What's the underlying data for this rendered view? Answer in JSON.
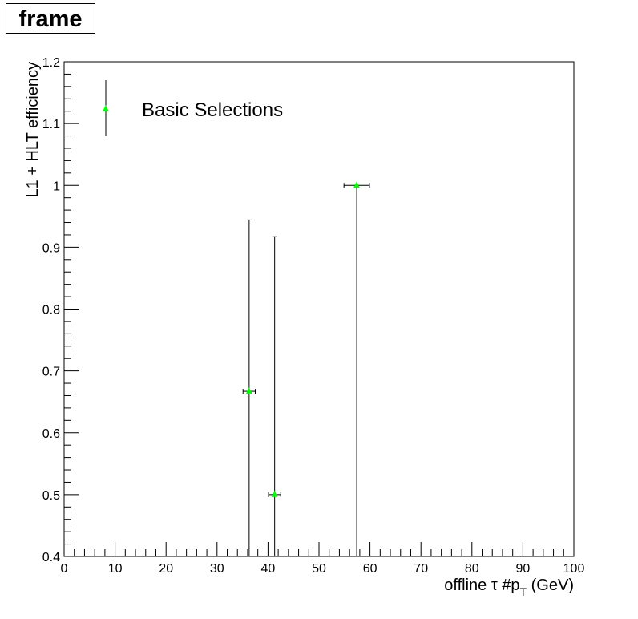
{
  "chart_data": {
    "type": "scatter",
    "title": "frame",
    "xlabel": "offline τ #p",
    "xlabel_subscript": "T",
    "xlabel_suffix": " (GeV)",
    "ylabel": "L1 + HLT efficiency",
    "xlim": [
      0,
      100
    ],
    "ylim": [
      0.4,
      1.2
    ],
    "x_ticks": [
      0,
      10,
      20,
      30,
      40,
      50,
      60,
      70,
      80,
      90,
      100
    ],
    "x_tick_labels": [
      "0",
      "10",
      "20",
      "30",
      "40",
      "50",
      "60",
      "70",
      "80",
      "90",
      "100"
    ],
    "y_ticks": [
      0.4,
      0.5,
      0.6,
      0.7,
      0.8,
      0.9,
      1.0,
      1.1,
      1.2
    ],
    "y_tick_labels": [
      "0.4",
      "0.5",
      "0.6",
      "0.7",
      "0.8",
      "0.9",
      "1",
      "1.1",
      "1.2"
    ],
    "grid": false,
    "legend_position": "top-left",
    "series": [
      {
        "name": "Basic Selections",
        "color": "#00ff00",
        "marker": "triangle-up",
        "points": [
          {
            "x": 36.3,
            "y": 0.667,
            "x_err": 1.2,
            "y_low": 0.4,
            "y_high": 0.944
          },
          {
            "x": 41.3,
            "y": 0.5,
            "x_err": 1.2,
            "y_low": 0.4,
            "y_high": 0.917
          },
          {
            "x": 57.4,
            "y": 1.0,
            "x_err": 2.5,
            "y_low": 0.4,
            "y_high": 1.0
          }
        ]
      }
    ]
  }
}
